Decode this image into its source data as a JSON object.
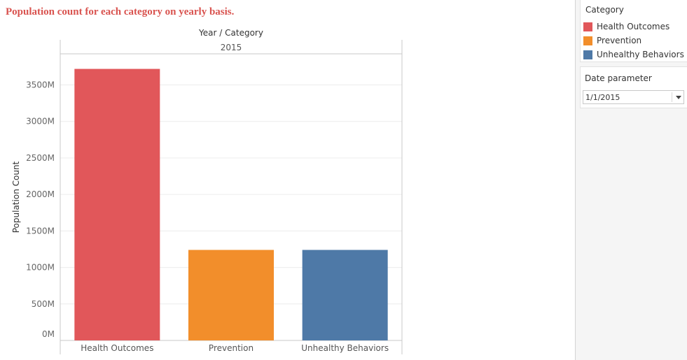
{
  "chart_title": "Population count for each category on yearly basis.",
  "colors": {
    "title": "#d9534f",
    "health_outcomes": "#e1575a",
    "prevention": "#f28e2b",
    "unhealthy_behaviors": "#4e79a7"
  },
  "chart_data": {
    "type": "bar",
    "title": "Population count for each category on yearly basis.",
    "header_title": "Year / Category",
    "header_year": "2015",
    "xlabel": "",
    "ylabel": "Population Count",
    "categories": [
      "Health Outcomes",
      "Prevention",
      "Unhealthy Behaviors"
    ],
    "values": [
      3720,
      1240,
      1240
    ],
    "value_unit": "M",
    "bar_colors": [
      "#e1575a",
      "#f28e2b",
      "#4e79a7"
    ],
    "ylim": [
      0,
      3900
    ],
    "yticks": [
      0,
      500,
      1000,
      1500,
      2000,
      2500,
      3000,
      3500
    ],
    "ytick_labels": [
      "0M",
      "500M",
      "1000M",
      "1500M",
      "2000M",
      "2500M",
      "3000M",
      "3500M"
    ],
    "grid": true,
    "legend": "right"
  },
  "legend": {
    "title": "Category",
    "items": [
      {
        "label": "Health Outcomes",
        "color": "#e1575a"
      },
      {
        "label": "Prevention",
        "color": "#f28e2b"
      },
      {
        "label": "Unhealthy Behaviors",
        "color": "#4e79a7"
      }
    ]
  },
  "parameter": {
    "title": "Date parameter",
    "value": "1/1/2015"
  }
}
